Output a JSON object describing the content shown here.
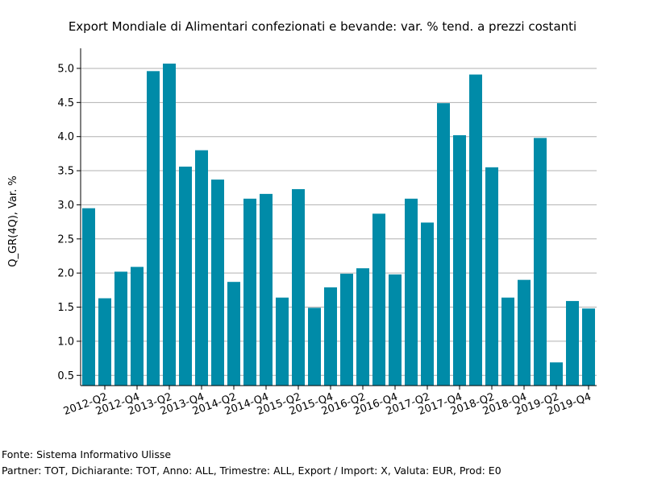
{
  "chart_data": {
    "type": "bar",
    "title": "Export Mondiale di Alimentari confezionati e bevande: var. % tend. a prezzi costanti",
    "xlabel": "",
    "ylabel": "Q_GR(4Q), Var. %",
    "ylim": [
      0.35,
      5.2
    ],
    "yticks": [
      0.5,
      1.0,
      1.5,
      2.0,
      2.5,
      3.0,
      3.5,
      4.0,
      4.5,
      5.0
    ],
    "ytick_labels": [
      "0.5",
      "1.0",
      "1.5",
      "2.0",
      "2.5",
      "3.0",
      "3.5",
      "4.0",
      "4.5",
      "5.0"
    ],
    "grid": true,
    "bar_color": "#008ba8",
    "categories": [
      "2012-Q1",
      "2012-Q2",
      "2012-Q3",
      "2012-Q4",
      "2013-Q1",
      "2013-Q2",
      "2013-Q3",
      "2013-Q4",
      "2014-Q1",
      "2014-Q2",
      "2014-Q3",
      "2014-Q4",
      "2015-Q1",
      "2015-Q2",
      "2015-Q3",
      "2015-Q4",
      "2016-Q1",
      "2016-Q2",
      "2016-Q3",
      "2016-Q4",
      "2017-Q1",
      "2017-Q2",
      "2017-Q3",
      "2017-Q4",
      "2018-Q1",
      "2018-Q2",
      "2018-Q3",
      "2018-Q4",
      "2019-Q1",
      "2019-Q2",
      "2019-Q3",
      "2019-Q4"
    ],
    "xtick_labels": [
      "2012-Q2",
      "2012-Q4",
      "2013-Q2",
      "2013-Q4",
      "2014-Q2",
      "2014-Q4",
      "2015-Q2",
      "2015-Q4",
      "2016-Q2",
      "2016-Q4",
      "2017-Q2",
      "2017-Q4",
      "2018-Q2",
      "2018-Q4",
      "2019-Q2",
      "2019-Q4"
    ],
    "values": [
      2.95,
      1.63,
      2.02,
      2.09,
      4.96,
      5.07,
      3.56,
      3.8,
      3.37,
      1.87,
      3.09,
      3.16,
      1.64,
      3.23,
      1.49,
      1.79,
      1.99,
      2.07,
      2.87,
      1.98,
      3.09,
      2.74,
      4.49,
      4.02,
      4.91,
      3.55,
      1.64,
      1.9,
      3.98,
      0.69,
      1.59,
      1.48
    ]
  },
  "footer": {
    "source": "Fonte: Sistema Informativo Ulisse",
    "filters": "Partner: TOT, Dichiarante: TOT, Anno: ALL, Trimestre: ALL, Export / Import: X, Valuta: EUR, Prod: E0"
  }
}
